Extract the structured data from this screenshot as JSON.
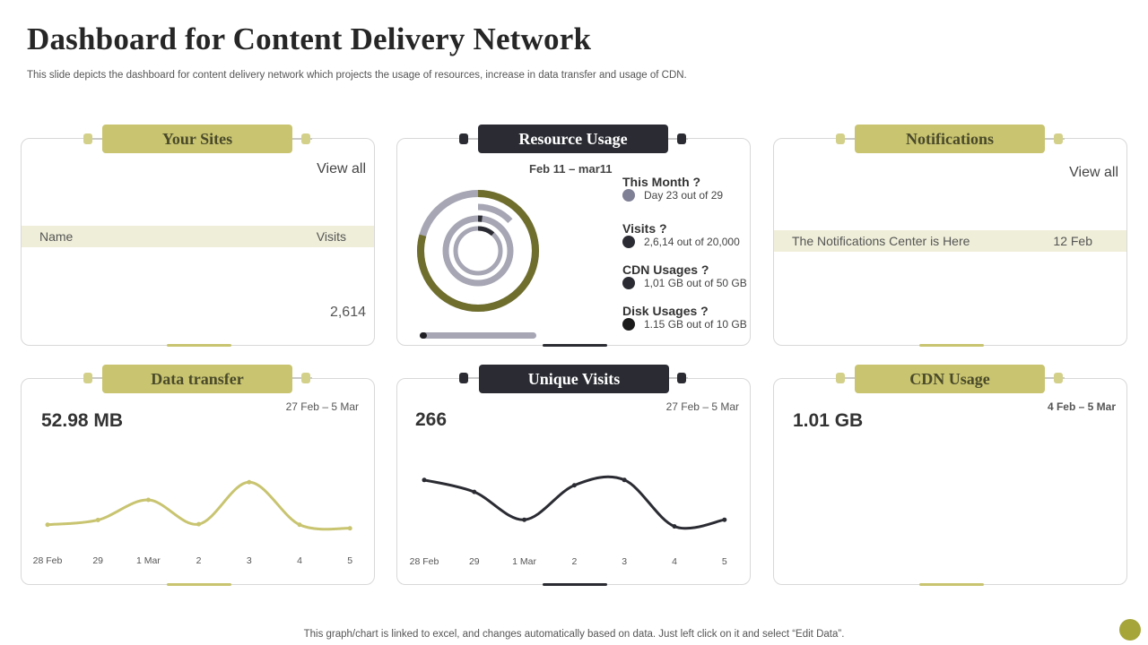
{
  "page": {
    "title": "Dashboard for Content Delivery Network",
    "subtitle": "This slide depicts the dashboard for content delivery network which projects the usage of resources, increase in data transfer and usage of CDN.",
    "footer": "This graph/chart is linked to excel,  and changes automatically based on data. Just left click on it and select “Edit Data”."
  },
  "your_sites": {
    "header": "Your Sites",
    "view_all": "View all",
    "col_name": "Name",
    "col_visits": "Visits",
    "visits_value": "2,614"
  },
  "resource_usage": {
    "header": "Resource Usage",
    "date_range": "Feb 11 – mar11",
    "items": [
      {
        "label": "This Month  ?",
        "detail": "Day 23 out of 29",
        "color": "#7f7f95"
      },
      {
        "label": "Visits  ?",
        "detail": "2,6,14 out of 20,000",
        "color": "#2b2c33"
      },
      {
        "label": "CDN Usages   ?",
        "detail": "1,01 GB out of 50 GB",
        "color": "#2b2c33"
      },
      {
        "label": "Disk  Usages   ?",
        "detail": "1.15 GB out of 10 GB",
        "color": "#1b1b1b"
      }
    ],
    "rings": [
      {
        "name": "This Month",
        "fraction": 0.7931,
        "color": "#6f6e2d",
        "track": "#a6a6b4"
      },
      {
        "name": "Visits",
        "fraction": 0.1307,
        "color": "#a6a6b4",
        "track": "#ffffff"
      },
      {
        "name": "CDN Usages",
        "fraction": 0.0202,
        "color": "#2b2c33",
        "track": "#a6a6b4"
      },
      {
        "name": "Disk Usages",
        "fraction": 0.115,
        "color": "#2b2c33",
        "track": "#a6a6b4"
      }
    ],
    "progress": 0.06
  },
  "notifications": {
    "header": "Notifications",
    "view_all": "View all",
    "message": "The Notifications Center is Here",
    "date": "12 Feb"
  },
  "data_transfer": {
    "header": "Data transfer",
    "value": "52.98 MB",
    "range": "27 Feb – 5 Mar",
    "color": "#c8c470"
  },
  "unique_visits": {
    "header": "Unique Visits",
    "value": "266",
    "range": "27 Feb – 5 Mar",
    "color": "#2b2c33"
  },
  "cdn_usage": {
    "header": "CDN Usage",
    "value": "1.01 GB",
    "range": "4 Feb  – 5 Mar"
  },
  "chart_data": [
    {
      "type": "line",
      "x": [
        "28 Feb",
        "29",
        "1 Mar",
        "2",
        "3",
        "4",
        "5"
      ],
      "series": [
        {
          "values": [
            14,
            22,
            56,
            15,
            86,
            14,
            8
          ]
        }
      ],
      "ylim": [
        0,
        100
      ]
    },
    {
      "type": "line",
      "x": [
        "28 Feb",
        "29",
        "1 Mar",
        "2",
        "3",
        "4",
        "5"
      ],
      "series": [
        {
          "values": [
            80,
            62,
            20,
            72,
            80,
            10,
            20
          ]
        }
      ],
      "ylim": [
        0,
        100
      ]
    }
  ]
}
